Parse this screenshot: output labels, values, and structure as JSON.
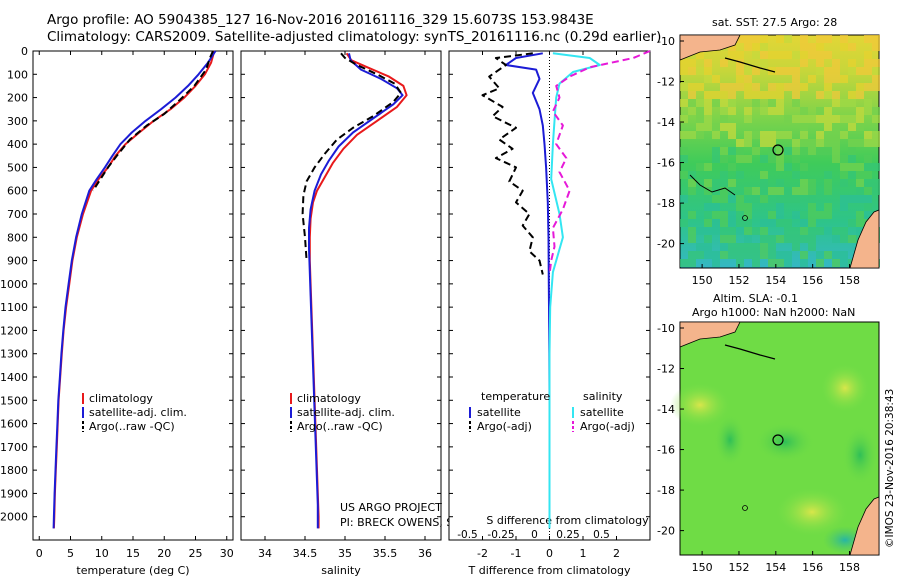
{
  "header": {
    "line1": "Argo profile: AO 5904385_127 16-Nov-2016 20161116_329 15.6073S 153.9843E",
    "line2": "Climatology: CARS2009. Satellite-adjusted climatology: synTS_20161116.nc (0.29d earlier)"
  },
  "colors": {
    "red": "#e8191b",
    "blue": "#1c1cd6",
    "black": "#000000",
    "cyan": "#33e6f2",
    "magenta": "#e619d8"
  },
  "chart_data": [
    {
      "type": "line",
      "xlabel": "temperature (deg C)",
      "ylabel": "",
      "xlim": [
        -1,
        31
      ],
      "ylim": [
        2100,
        0
      ],
      "xticks": [
        "0",
        "5",
        "10",
        "15",
        "20",
        "25",
        "30"
      ],
      "yticks": [
        "0",
        "100",
        "200",
        "300",
        "400",
        "500",
        "600",
        "700",
        "800",
        "900",
        "1000",
        "1100",
        "1200",
        "1300",
        "1400",
        "1500",
        "1600",
        "1700",
        "1800",
        "1900",
        "2000"
      ],
      "legend": [
        "climatology",
        "satellite-adj. clim.",
        "Argo(..raw -QC)"
      ],
      "series": [
        {
          "name": "climatology",
          "color": "red",
          "dash": false,
          "points": [
            [
              28.0,
              0
            ],
            [
              27.5,
              50
            ],
            [
              26.5,
              100
            ],
            [
              25,
              150
            ],
            [
              23.2,
              200
            ],
            [
              21,
              250
            ],
            [
              18.3,
              300
            ],
            [
              16,
              350
            ],
            [
              13.8,
              400
            ],
            [
              12.2,
              450
            ],
            [
              11,
              500
            ],
            [
              9.5,
              550
            ],
            [
              8.3,
              600
            ],
            [
              7,
              700
            ],
            [
              6,
              800
            ],
            [
              5.3,
              900
            ],
            [
              4.8,
              1000
            ],
            [
              4.3,
              1100
            ],
            [
              3.9,
              1200
            ],
            [
              3.6,
              1300
            ],
            [
              3.35,
              1400
            ],
            [
              3.1,
              1500
            ],
            [
              2.95,
              1600
            ],
            [
              2.8,
              1700
            ],
            [
              2.65,
              1800
            ],
            [
              2.5,
              1900
            ],
            [
              2.4,
              2000
            ],
            [
              2.35,
              2050
            ]
          ]
        },
        {
          "name": "satellite-adj. clim.",
          "color": "blue",
          "dash": false,
          "points": [
            [
              28.2,
              0
            ],
            [
              27,
              50
            ],
            [
              25.5,
              100
            ],
            [
              23.8,
              150
            ],
            [
              21.8,
              200
            ],
            [
              19.5,
              250
            ],
            [
              17,
              300
            ],
            [
              14.8,
              350
            ],
            [
              13,
              400
            ],
            [
              11.7,
              450
            ],
            [
              10.5,
              500
            ],
            [
              9.2,
              550
            ],
            [
              8,
              600
            ],
            [
              6.8,
              700
            ],
            [
              5.9,
              800
            ],
            [
              5.2,
              900
            ],
            [
              4.7,
              1000
            ],
            [
              4.2,
              1100
            ],
            [
              3.85,
              1200
            ],
            [
              3.55,
              1300
            ],
            [
              3.3,
              1400
            ],
            [
              3.05,
              1500
            ],
            [
              2.9,
              1600
            ],
            [
              2.75,
              1700
            ],
            [
              2.6,
              1800
            ],
            [
              2.45,
              1900
            ],
            [
              2.35,
              2000
            ],
            [
              2.3,
              2050
            ]
          ]
        },
        {
          "name": "Argo(..raw -QC)",
          "color": "black",
          "dash": true,
          "points": [
            [
              27.8,
              0
            ],
            [
              27.3,
              30
            ],
            [
              26.7,
              80
            ],
            [
              24.8,
              150
            ],
            [
              22.5,
              210
            ],
            [
              20,
              270
            ],
            [
              17.2,
              320
            ],
            [
              14.5,
              380
            ],
            [
              12.4,
              450
            ],
            [
              11,
              500
            ],
            [
              9.8,
              550
            ],
            [
              8.6,
              600
            ]
          ]
        }
      ]
    },
    {
      "type": "line",
      "xlabel": "salinity",
      "ylabel": "",
      "xlim": [
        33.7,
        36.2
      ],
      "ylim": [
        2100,
        0
      ],
      "xticks": [
        "34",
        "34.5",
        "35",
        "35.5",
        "36"
      ],
      "legend": [
        "climatology",
        "satellite-adj. clim.",
        "Argo(..raw -QC)"
      ],
      "credit1": "US ARGO PROJECT",
      "credit2": "PI: BRECK OWENS, STEVE JAYNE, P.E. ROBBINS",
      "series": [
        {
          "name": "climatology",
          "color": "red",
          "dash": false,
          "points": [
            [
              35.02,
              10
            ],
            [
              35.08,
              40
            ],
            [
              35.28,
              70
            ],
            [
              35.55,
              110
            ],
            [
              35.73,
              150
            ],
            [
              35.77,
              190
            ],
            [
              35.65,
              240
            ],
            [
              35.4,
              300
            ],
            [
              35.15,
              360
            ],
            [
              34.98,
              420
            ],
            [
              34.85,
              480
            ],
            [
              34.75,
              540
            ],
            [
              34.65,
              600
            ],
            [
              34.6,
              650
            ],
            [
              34.57,
              720
            ],
            [
              34.56,
              800
            ],
            [
              34.56,
              900
            ],
            [
              34.57,
              1000
            ],
            [
              34.58,
              1100
            ],
            [
              34.59,
              1200
            ],
            [
              34.6,
              1300
            ],
            [
              34.61,
              1400
            ],
            [
              34.62,
              1500
            ],
            [
              34.63,
              1600
            ],
            [
              34.64,
              1700
            ],
            [
              34.65,
              1800
            ],
            [
              34.66,
              1900
            ],
            [
              34.67,
              2000
            ],
            [
              34.67,
              2050
            ]
          ]
        },
        {
          "name": "satellite-adj. clim.",
          "color": "blue",
          "dash": false,
          "points": [
            [
              35.05,
              10
            ],
            [
              35.07,
              40
            ],
            [
              35.2,
              80
            ],
            [
              35.45,
              120
            ],
            [
              35.65,
              160
            ],
            [
              35.72,
              190
            ],
            [
              35.6,
              230
            ],
            [
              35.35,
              290
            ],
            [
              35.1,
              350
            ],
            [
              34.92,
              410
            ],
            [
              34.8,
              470
            ],
            [
              34.7,
              530
            ],
            [
              34.62,
              600
            ],
            [
              34.57,
              680
            ],
            [
              34.55,
              760
            ],
            [
              34.55,
              850
            ],
            [
              34.56,
              950
            ],
            [
              34.57,
              1050
            ],
            [
              34.58,
              1150
            ],
            [
              34.59,
              1250
            ],
            [
              34.6,
              1350
            ],
            [
              34.61,
              1450
            ],
            [
              34.62,
              1550
            ],
            [
              34.63,
              1650
            ],
            [
              34.64,
              1750
            ],
            [
              34.65,
              1850
            ],
            [
              34.66,
              1950
            ],
            [
              34.66,
              2050
            ]
          ]
        },
        {
          "name": "Argo(..raw -QC)",
          "color": "black",
          "dash": true,
          "points": [
            [
              34.95,
              10
            ],
            [
              35.0,
              30
            ],
            [
              35.15,
              60
            ],
            [
              35.4,
              100
            ],
            [
              35.62,
              140
            ],
            [
              35.7,
              180
            ],
            [
              35.6,
              220
            ],
            [
              35.35,
              280
            ],
            [
              35.1,
              330
            ],
            [
              34.9,
              380
            ],
            [
              34.75,
              440
            ],
            [
              34.62,
              500
            ],
            [
              34.52,
              560
            ],
            [
              34.48,
              620
            ],
            [
              34.47,
              700
            ],
            [
              34.5,
              800
            ],
            [
              34.52,
              900
            ]
          ]
        }
      ]
    },
    {
      "type": "line",
      "xlabel": "T difference from climatology",
      "xlabel_top": "S difference from climatology",
      "xlim": [
        -3,
        3.0
      ],
      "ylim": [
        2100,
        0
      ],
      "xticks": [
        "-2",
        "-1",
        "0",
        "1",
        "2"
      ],
      "xticks_s": [
        "-0.5",
        "-0.25",
        "0",
        "0.25",
        "0.5"
      ],
      "legend_temp_head": "temperature",
      "legend_sal_head": "salinity",
      "legend": [
        "satellite",
        "Argo(-adj)",
        "satellite",
        "Argo(-adj)"
      ],
      "series": [
        {
          "name": "temperature satellite",
          "color": "blue",
          "dash": false,
          "points": [
            [
              -0.2,
              10
            ],
            [
              -1.0,
              30
            ],
            [
              -1.3,
              60
            ],
            [
              -0.4,
              80
            ],
            [
              -0.3,
              120
            ],
            [
              -0.5,
              180
            ],
            [
              -0.3,
              250
            ],
            [
              -0.2,
              320
            ],
            [
              -0.15,
              400
            ],
            [
              -0.1,
              500
            ],
            [
              -0.05,
              650
            ],
            [
              -0.03,
              800
            ],
            [
              -0.02,
              1000
            ],
            [
              -0.01,
              1200
            ],
            [
              0,
              1500
            ],
            [
              0,
              2050
            ]
          ]
        },
        {
          "name": "temperature Argo(-adj)",
          "color": "black",
          "dash": true,
          "points": [
            [
              -0.5,
              10
            ],
            [
              -1.6,
              30
            ],
            [
              -1.3,
              60
            ],
            [
              -1.8,
              110
            ],
            [
              -1.5,
              160
            ],
            [
              -2.0,
              190
            ],
            [
              -1.4,
              240
            ],
            [
              -1.7,
              280
            ],
            [
              -1.0,
              330
            ],
            [
              -1.5,
              380
            ],
            [
              -1.1,
              420
            ],
            [
              -1.6,
              460
            ],
            [
              -1.0,
              500
            ],
            [
              -1.2,
              560
            ],
            [
              -0.8,
              600
            ],
            [
              -1.0,
              650
            ],
            [
              -0.6,
              700
            ],
            [
              -0.8,
              750
            ],
            [
              -0.5,
              800
            ],
            [
              -0.6,
              860
            ],
            [
              -0.3,
              900
            ],
            [
              -0.2,
              960
            ]
          ]
        },
        {
          "name": "salinity satellite",
          "color": "cyan",
          "dash": false,
          "points": [
            [
              0.1,
              10
            ],
            [
              1.2,
              30
            ],
            [
              1.5,
              60
            ],
            [
              0.7,
              90
            ],
            [
              0.3,
              140
            ],
            [
              0.2,
              200
            ],
            [
              0.15,
              300
            ],
            [
              0.1,
              400
            ],
            [
              0.05,
              550
            ],
            [
              0.3,
              700
            ],
            [
              0.4,
              800
            ],
            [
              0.1,
              950
            ],
            [
              0.02,
              1100
            ],
            [
              0,
              1300
            ],
            [
              0,
              2050
            ]
          ]
        },
        {
          "name": "salinity Argo(-adj)",
          "color": "magenta",
          "dash": true,
          "points": [
            [
              3.0,
              0
            ],
            [
              2.5,
              30
            ],
            [
              1.2,
              70
            ],
            [
              0.6,
              110
            ],
            [
              0.2,
              150
            ],
            [
              0.3,
              200
            ],
            [
              0.1,
              260
            ],
            [
              0.4,
              320
            ],
            [
              0.2,
              400
            ],
            [
              0.5,
              460
            ],
            [
              0.3,
              520
            ],
            [
              0.6,
              600
            ],
            [
              0.4,
              680
            ],
            [
              0.1,
              760
            ],
            [
              0.15,
              840
            ],
            [
              0.05,
              900
            ],
            [
              0.0,
              960
            ]
          ]
        }
      ]
    }
  ],
  "maps": {
    "sst_title": "sat. SST: 27.5 Argo: 28",
    "sla_title1": "Altim. SLA: -0.1",
    "sla_title2": "Argo h1000: NaN h2000: NaN",
    "yticks": [
      "-10",
      "-12",
      "-14",
      "-16",
      "-18",
      "-20"
    ],
    "xticks": [
      "150",
      "152",
      "154",
      "156",
      "158"
    ],
    "footer": "©IMOS 23-Nov-2016 20:38:43"
  }
}
